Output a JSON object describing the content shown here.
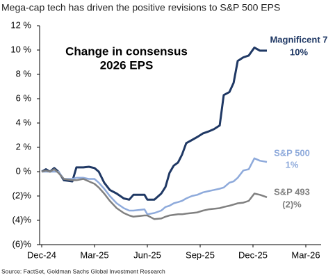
{
  "chart_data": {
    "type": "line",
    "title": "Mega-cap tech has driven the positive revisions to S&P 500 EPS",
    "annotation": [
      "Change in consensus",
      "2026 EPS"
    ],
    "source": "Source: FactSet, Goldman Sachs Global Investment Research",
    "x": [
      0,
      0.24,
      0.47,
      0.71,
      0.95,
      1.26,
      1.74,
      1.97,
      2.37,
      2.68,
      3.0,
      3.24,
      3.55,
      3.87,
      4.26,
      4.66,
      4.97,
      5.21,
      5.84,
      6.0,
      6.4,
      6.79,
      7.03,
      7.26,
      7.5,
      7.74,
      7.97,
      8.21,
      8.53,
      8.84,
      9.16,
      9.47,
      9.79,
      10.11,
      10.34,
      10.66,
      10.9,
      11.13,
      11.45,
      11.76,
      12.08,
      12.4,
      12.79
    ],
    "series": [
      {
        "name": "Magnificent 7",
        "color": "#1f3864",
        "end_label": "10%",
        "values": [
          0,
          0.2,
          0,
          0.3,
          0,
          -0.7,
          -0.8,
          0.35,
          0.35,
          0.4,
          0.3,
          0,
          -0.9,
          -1.5,
          -1.8,
          -2.2,
          -2.3,
          -1.9,
          -1.9,
          -2.3,
          -2.3,
          -1.8,
          -1.25,
          -0.1,
          0.5,
          0.75,
          1.4,
          2.35,
          2.6,
          2.85,
          3.15,
          3.3,
          3.5,
          3.8,
          6.3,
          6.55,
          7.3,
          9.1,
          9.4,
          9.55,
          10.2,
          9.95,
          9.95
        ]
      },
      {
        "name": "S&P 500",
        "color": "#8eaadb",
        "end_label": "1%",
        "values": [
          0,
          0,
          0,
          0,
          0,
          -0.6,
          -0.6,
          -0.5,
          -0.5,
          -0.6,
          -0.6,
          -0.9,
          -1.4,
          -2.0,
          -2.6,
          -3.0,
          -3.2,
          -3.2,
          -3.1,
          -3.5,
          -3.4,
          -3.2,
          -2.9,
          -2.8,
          -2.6,
          -2.5,
          -2.4,
          -2.2,
          -2.0,
          -1.9,
          -1.7,
          -1.6,
          -1.5,
          -1.4,
          -1.3,
          -0.9,
          -0.8,
          -0.5,
          0.1,
          0.2,
          1.1,
          0.9,
          0.8
        ]
      },
      {
        "name": "S&P 493",
        "color": "#808080",
        "end_label": "(2)%",
        "values": [
          0,
          0.1,
          0,
          0.2,
          -0.1,
          -0.6,
          -0.7,
          -0.7,
          -0.6,
          -0.8,
          -1.0,
          -1.3,
          -1.8,
          -2.4,
          -3.0,
          -3.4,
          -3.6,
          -3.7,
          -3.6,
          -3.6,
          -3.9,
          -3.85,
          -3.7,
          -3.6,
          -3.55,
          -3.5,
          -3.5,
          -3.45,
          -3.4,
          -3.35,
          -3.2,
          -3.1,
          -3.05,
          -3.0,
          -2.9,
          -2.8,
          -2.7,
          -2.6,
          -2.55,
          -2.4,
          -1.8,
          -1.9,
          -2.1
        ]
      }
    ],
    "xlim": [
      0,
      15
    ],
    "xticks": [
      {
        "value": 0,
        "label": "Dec-24"
      },
      {
        "value": 3,
        "label": "Mar-25"
      },
      {
        "value": 6,
        "label": "Jun-25"
      },
      {
        "value": 9,
        "label": "Sep-25"
      },
      {
        "value": 12,
        "label": "Dec-25"
      },
      {
        "value": 15,
        "label": "Mar-26"
      }
    ],
    "ylim": [
      -6,
      12
    ],
    "yticks": [
      {
        "value": 12,
        "label": "12 %"
      },
      {
        "value": 10,
        "label": "10 %"
      },
      {
        "value": 8,
        "label": "8 %"
      },
      {
        "value": 6,
        "label": "6 %"
      },
      {
        "value": 4,
        "label": "4 %"
      },
      {
        "value": 2,
        "label": "2 %"
      },
      {
        "value": 0,
        "label": "0 %"
      },
      {
        "value": -2,
        "label": "(2)%"
      },
      {
        "value": -4,
        "label": "(4)%"
      },
      {
        "value": -6,
        "label": "(6)%"
      }
    ]
  }
}
